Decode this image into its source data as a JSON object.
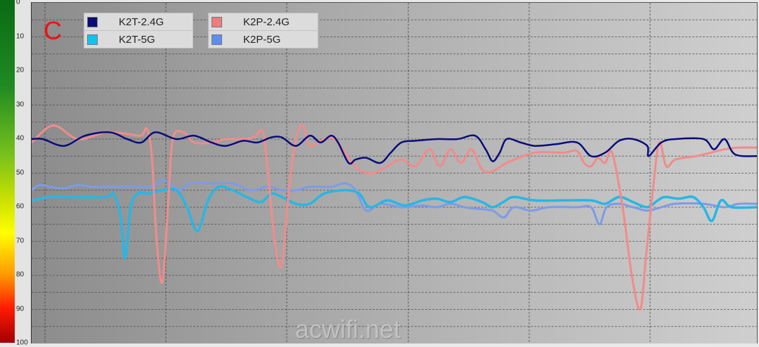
{
  "chart_data": {
    "type": "line",
    "title": "",
    "annotation": "C",
    "watermark": "acwifi.net",
    "xlabel": "",
    "ylabel": "",
    "ylim": [
      0,
      100
    ],
    "y_inverted": true,
    "y_ticks": [
      0,
      10,
      20,
      30,
      40,
      50,
      60,
      70,
      80,
      90,
      100
    ],
    "grid": true,
    "legend_position": "top-left",
    "legend": [
      "K2T-2.4G",
      "K2T-5G",
      "K2P-2.4G",
      "K2P-5G"
    ],
    "series": [
      {
        "name": "K2T-2.4G",
        "color": "#0b0b7a",
        "points": [
          [
            44,
            40
          ],
          [
            60,
            40
          ],
          [
            90,
            42
          ],
          [
            120,
            39
          ],
          [
            155,
            38
          ],
          [
            180,
            40
          ],
          [
            200,
            41
          ],
          [
            220,
            38
          ],
          [
            250,
            40
          ],
          [
            275,
            39
          ],
          [
            300,
            41
          ],
          [
            320,
            42
          ],
          [
            345,
            40.5
          ],
          [
            365,
            41
          ],
          [
            385,
            39.5
          ],
          [
            400,
            39.5
          ],
          [
            420,
            42
          ],
          [
            440,
            39
          ],
          [
            455,
            41
          ],
          [
            470,
            39
          ],
          [
            480,
            41
          ],
          [
            495,
            47
          ],
          [
            505,
            46
          ],
          [
            520,
            45.5
          ],
          [
            540,
            47
          ],
          [
            555,
            44
          ],
          [
            570,
            41
          ],
          [
            590,
            40.5
          ],
          [
            620,
            40
          ],
          [
            650,
            40
          ],
          [
            675,
            39
          ],
          [
            690,
            43
          ],
          [
            700,
            46.5
          ],
          [
            710,
            44
          ],
          [
            720,
            40
          ],
          [
            740,
            41
          ],
          [
            760,
            42
          ],
          [
            790,
            41.5
          ],
          [
            820,
            41
          ],
          [
            840,
            45
          ],
          [
            860,
            44
          ],
          [
            880,
            40.5
          ],
          [
            900,
            40
          ],
          [
            920,
            42
          ],
          [
            922,
            45
          ],
          [
            940,
            41
          ],
          [
            960,
            40
          ],
          [
            1000,
            40
          ],
          [
            1015,
            43
          ],
          [
            1030,
            40
          ],
          [
            1045,
            44.5
          ],
          [
            1076,
            45
          ]
        ]
      },
      {
        "name": "K2P-2.4G",
        "color": "#f28b8b",
        "points": [
          [
            44,
            41
          ],
          [
            75,
            36
          ],
          [
            110,
            40
          ],
          [
            150,
            38
          ],
          [
            180,
            38.5
          ],
          [
            200,
            39
          ],
          [
            208,
            37
          ],
          [
            215,
            45
          ],
          [
            222,
            70
          ],
          [
            230,
            82
          ],
          [
            238,
            60
          ],
          [
            245,
            40
          ],
          [
            260,
            38
          ],
          [
            275,
            41
          ],
          [
            300,
            41
          ],
          [
            320,
            40
          ],
          [
            340,
            40
          ],
          [
            360,
            39.5
          ],
          [
            372,
            37.5
          ],
          [
            378,
            45
          ],
          [
            390,
            70
          ],
          [
            400,
            77
          ],
          [
            410,
            55
          ],
          [
            420,
            40
          ],
          [
            430,
            36
          ],
          [
            440,
            42
          ],
          [
            460,
            40
          ],
          [
            475,
            40
          ],
          [
            490,
            44
          ],
          [
            510,
            49
          ],
          [
            530,
            50
          ],
          [
            550,
            48
          ],
          [
            570,
            46
          ],
          [
            590,
            48
          ],
          [
            610,
            43
          ],
          [
            625,
            48
          ],
          [
            640,
            43
          ],
          [
            655,
            47
          ],
          [
            670,
            43
          ],
          [
            685,
            49
          ],
          [
            700,
            49.5
          ],
          [
            720,
            47
          ],
          [
            760,
            44
          ],
          [
            800,
            44
          ],
          [
            820,
            43.5
          ],
          [
            830,
            47
          ],
          [
            840,
            48
          ],
          [
            850,
            45.5
          ],
          [
            860,
            47
          ],
          [
            870,
            44
          ],
          [
            885,
            60
          ],
          [
            898,
            80
          ],
          [
            910,
            90
          ],
          [
            918,
            75
          ],
          [
            928,
            55
          ],
          [
            937,
            41
          ],
          [
            947,
            48
          ],
          [
            960,
            46
          ],
          [
            990,
            45
          ],
          [
            1010,
            44
          ],
          [
            1030,
            43
          ],
          [
            1050,
            42.5
          ],
          [
            1076,
            42.5
          ]
        ]
      },
      {
        "name": "K2T-5G",
        "color": "#26b7e6",
        "points": [
          [
            44,
            58
          ],
          [
            70,
            57
          ],
          [
            100,
            57
          ],
          [
            150,
            57
          ],
          [
            160,
            56
          ],
          [
            170,
            62
          ],
          [
            177,
            75
          ],
          [
            185,
            60
          ],
          [
            195,
            56
          ],
          [
            210,
            56
          ],
          [
            230,
            55
          ],
          [
            250,
            55
          ],
          [
            265,
            60
          ],
          [
            280,
            67
          ],
          [
            295,
            58
          ],
          [
            310,
            54
          ],
          [
            330,
            55
          ],
          [
            350,
            57
          ],
          [
            370,
            58.5
          ],
          [
            385,
            56
          ],
          [
            400,
            57
          ],
          [
            420,
            59
          ],
          [
            440,
            59
          ],
          [
            460,
            56
          ],
          [
            490,
            55
          ],
          [
            510,
            56
          ],
          [
            525,
            60
          ],
          [
            550,
            58
          ],
          [
            575,
            59.5
          ],
          [
            600,
            58
          ],
          [
            620,
            57.5
          ],
          [
            640,
            58.5
          ],
          [
            660,
            57
          ],
          [
            685,
            58.5
          ],
          [
            700,
            60
          ],
          [
            715,
            58.5
          ],
          [
            730,
            57
          ],
          [
            760,
            58
          ],
          [
            800,
            58
          ],
          [
            840,
            58
          ],
          [
            860,
            59
          ],
          [
            880,
            57
          ],
          [
            900,
            58.5
          ],
          [
            920,
            60
          ],
          [
            935,
            58
          ],
          [
            945,
            57
          ],
          [
            965,
            57.5
          ],
          [
            985,
            57
          ],
          [
            1000,
            60
          ],
          [
            1012,
            64
          ],
          [
            1025,
            58
          ],
          [
            1040,
            60
          ],
          [
            1076,
            60
          ]
        ]
      },
      {
        "name": "K2P-5G",
        "color": "#7c9be8",
        "points": [
          [
            44,
            55
          ],
          [
            55,
            53.5
          ],
          [
            70,
            54
          ],
          [
            90,
            54.5
          ],
          [
            110,
            53.5
          ],
          [
            130,
            54
          ],
          [
            160,
            54
          ],
          [
            190,
            54
          ],
          [
            215,
            54
          ],
          [
            230,
            52
          ],
          [
            240,
            53
          ],
          [
            255,
            55
          ],
          [
            270,
            53
          ],
          [
            300,
            53
          ],
          [
            330,
            53
          ],
          [
            355,
            55
          ],
          [
            380,
            54
          ],
          [
            400,
            55
          ],
          [
            420,
            55
          ],
          [
            440,
            54
          ],
          [
            470,
            54
          ],
          [
            490,
            53
          ],
          [
            505,
            55
          ],
          [
            520,
            61
          ],
          [
            540,
            59
          ],
          [
            570,
            60
          ],
          [
            600,
            59.5
          ],
          [
            620,
            60
          ],
          [
            640,
            59
          ],
          [
            660,
            60
          ],
          [
            680,
            60.5
          ],
          [
            700,
            61
          ],
          [
            716,
            63
          ],
          [
            730,
            60
          ],
          [
            755,
            61
          ],
          [
            780,
            60
          ],
          [
            820,
            60
          ],
          [
            840,
            60
          ],
          [
            852,
            65
          ],
          [
            862,
            60
          ],
          [
            880,
            59
          ],
          [
            900,
            60
          ],
          [
            920,
            61
          ],
          [
            940,
            60
          ],
          [
            960,
            59
          ],
          [
            1000,
            59
          ],
          [
            1030,
            60
          ],
          [
            1050,
            59
          ],
          [
            1076,
            59
          ]
        ]
      }
    ]
  },
  "axis": {
    "y_labels": [
      "0",
      "10",
      "20",
      "30",
      "40",
      "50",
      "60",
      "70",
      "80",
      "90",
      "100"
    ]
  },
  "legend": {
    "items": [
      {
        "label": "K2T-2.4G",
        "color": "#0b0b7a"
      },
      {
        "label": "K2T-5G",
        "color": "#14c0f2"
      },
      {
        "label": "K2P-2.4G",
        "color": "#f07c7c"
      },
      {
        "label": "K2P-5G",
        "color": "#5b8ef0"
      }
    ]
  },
  "annotation": "C",
  "watermark": "acwifi.net"
}
